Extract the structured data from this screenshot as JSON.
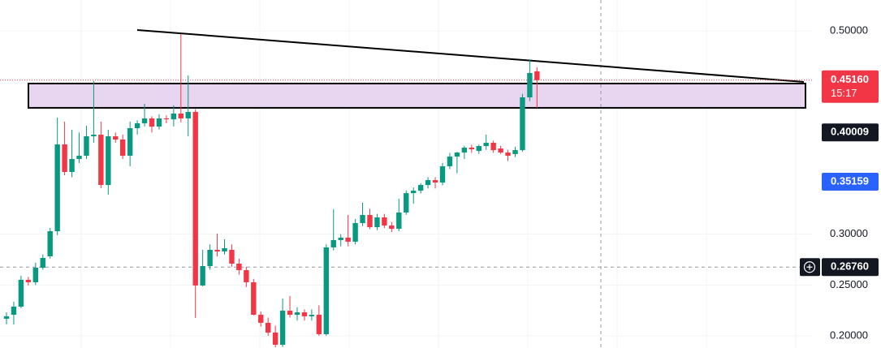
{
  "chart_data": {
    "type": "candlestick",
    "up_color": "#089981",
    "down_color": "#f23645",
    "ylim": [
      0.188,
      0.5304
    ],
    "yticks": [
      {
        "value": 0.2,
        "label": "0.20000"
      },
      {
        "value": 0.25,
        "label": "0.25000"
      },
      {
        "value": 0.3,
        "label": "0.30000"
      },
      {
        "value": 0.5,
        "label": "0.50000"
      }
    ],
    "grid": true,
    "open": [
      0.2168,
      0.2207,
      0.2287,
      0.2551,
      0.2527,
      0.267,
      0.2782,
      0.3029,
      0.3883,
      0.3612,
      0.374,
      0.3772,
      0.3963,
      0.3979,
      0.3484,
      0.3963,
      0.3931,
      0.3772,
      0.4043,
      0.4091,
      0.4139,
      0.4059,
      0.4139,
      0.413,
      0.4187,
      0.4139,
      0.4203,
      0.2495,
      0.2686,
      0.2846,
      0.283,
      0.2846,
      0.271,
      0.2646,
      0.2527,
      0.2207,
      0.2128,
      0.2032,
      0.1912,
      0.2247,
      0.2207,
      0.2231,
      0.2192,
      0.2207,
      0.2016,
      0.287,
      0.2942,
      0.2966,
      0.2926,
      0.3109,
      0.3189,
      0.3069,
      0.3165,
      0.3085,
      0.3053,
      0.3213,
      0.3404,
      0.3428,
      0.3484,
      0.3532,
      0.3508,
      0.3668,
      0.3764,
      0.3803,
      0.3851,
      0.3819,
      0.3867,
      0.3899,
      0.3843,
      0.3803,
      0.3788,
      0.3827,
      0.4346,
      0.4602
    ],
    "high": [
      0.2231,
      0.2335,
      0.2591,
      0.258,
      0.272,
      0.28,
      0.306,
      0.4147,
      0.4107,
      0.4027,
      0.4,
      0.4067,
      0.4506,
      0.4107,
      0.4027,
      0.4,
      0.398,
      0.4107,
      0.412,
      0.4282,
      0.416,
      0.418,
      0.417,
      0.4267,
      0.4969,
      0.4562,
      0.423,
      0.2846,
      0.29,
      0.3005,
      0.295,
      0.29,
      0.276,
      0.268,
      0.256,
      0.224,
      0.218,
      0.21,
      0.2367,
      0.2391,
      0.228,
      0.226,
      0.226,
      0.23,
      0.29,
      0.3245,
      0.3,
      0.3189,
      0.315,
      0.3309,
      0.325,
      0.32,
      0.32,
      0.312,
      0.3349,
      0.343,
      0.346,
      0.35,
      0.356,
      0.356,
      0.37,
      0.38,
      0.381,
      0.387,
      0.388,
      0.388,
      0.3979,
      0.392,
      0.387,
      0.383,
      0.386,
      0.438,
      0.4721,
      0.4641
    ],
    "low": [
      0.2112,
      0.2112,
      0.2271,
      0.2495,
      0.25,
      0.265,
      0.276,
      0.299,
      0.358,
      0.356,
      0.37,
      0.374,
      0.39,
      0.3452,
      0.3389,
      0.39,
      0.374,
      0.3668,
      0.398,
      0.406,
      0.4,
      0.403,
      0.409,
      0.406,
      0.41,
      0.3963,
      0.2176,
      0.2487,
      0.265,
      0.278,
      0.28,
      0.268,
      0.26,
      0.248,
      0.22,
      0.209,
      0.2,
      0.1888,
      0.189,
      0.218,
      0.215,
      0.215,
      0.215,
      0.2,
      0.2,
      0.284,
      0.288,
      0.288,
      0.29,
      0.308,
      0.305,
      0.304,
      0.306,
      0.302,
      0.303,
      0.319,
      0.33,
      0.34,
      0.345,
      0.345,
      0.348,
      0.364,
      0.36,
      0.374,
      0.38,
      0.379,
      0.383,
      0.38,
      0.379,
      0.372,
      0.376,
      0.381,
      0.431,
      0.4243
    ],
    "close": [
      0.2192,
      0.2287,
      0.2551,
      0.2527,
      0.267,
      0.2766,
      0.3029,
      0.3883,
      0.3612,
      0.374,
      0.3772,
      0.3963,
      0.3979,
      0.3484,
      0.3963,
      0.3931,
      0.3772,
      0.4043,
      0.4091,
      0.4139,
      0.4059,
      0.4139,
      0.413,
      0.4187,
      0.4139,
      0.4203,
      0.2495,
      0.2686,
      0.2846,
      0.283,
      0.2862,
      0.271,
      0.2646,
      0.2527,
      0.2207,
      0.2128,
      0.2032,
      0.1912,
      0.2247,
      0.2207,
      0.2231,
      0.2192,
      0.2207,
      0.2016,
      0.287,
      0.2942,
      0.2966,
      0.2926,
      0.3109,
      0.3189,
      0.3069,
      0.3165,
      0.3085,
      0.3053,
      0.3213,
      0.3404,
      0.3428,
      0.3484,
      0.3532,
      0.3508,
      0.3668,
      0.3764,
      0.3803,
      0.3851,
      0.3835,
      0.3867,
      0.3899,
      0.3827,
      0.3803,
      0.3772,
      0.3827,
      0.4346,
      0.4586,
      0.4516
    ],
    "zone": {
      "low": 0.4243,
      "high": 0.4482,
      "color": "#e8d5f0"
    },
    "trendline": {
      "start": 0.5009,
      "end": 0.4498,
      "color": "#000000"
    },
    "price_badges": [
      {
        "value": 0.4516,
        "label": "0.45160",
        "countdown": "15:17",
        "color": "#f23645"
      },
      {
        "value": 0.40009,
        "label": "0.40009",
        "color": "#131722"
      },
      {
        "value": 0.35159,
        "label": "0.35159",
        "color": "#2962ff"
      },
      {
        "value": 0.2676,
        "label": "0.26760",
        "color": "#131722"
      }
    ]
  }
}
